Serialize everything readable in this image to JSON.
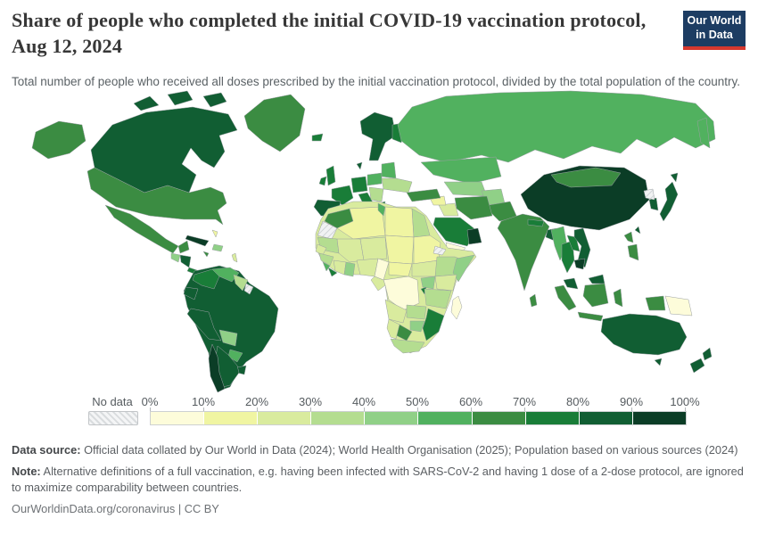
{
  "header": {
    "title": "Share of people who completed the initial COVID-19 vaccination protocol, Aug 12, 2024",
    "subtitle": "Total number of people who received all doses prescribed by the initial vaccination protocol, divided by the total population of the country.",
    "logo": {
      "line1": "Our World",
      "line2": "in Data",
      "bg_color": "#1d3d63",
      "accent_color": "#d7382e"
    }
  },
  "legend": {
    "no_data_label": "No data",
    "tick_labels": [
      "0%",
      "10%",
      "20%",
      "30%",
      "40%",
      "50%",
      "60%",
      "70%",
      "80%",
      "90%",
      "100%"
    ],
    "bucket_colors": [
      "#fdfcda",
      "#f0f5a2",
      "#d9eb9e",
      "#b4dd90",
      "#90d087",
      "#51b15f",
      "#3b8c42",
      "#197d38",
      "#115e33",
      "#0b3d26"
    ]
  },
  "footer": {
    "data_source_label": "Data source:",
    "data_source_text": " Official data collated by Our World in Data (2024); World Health Organisation (2025); Population based on various sources (2024)",
    "note_label": "Note:",
    "note_text": " Alternative definitions of a full vaccination, e.g. having been infected with SARS-CoV-2 and having 1 dose of a 2-dose protocol, are ignored to maximize comparability between countries.",
    "citation": "OurWorldinData.org/coronavirus | CC BY"
  },
  "chart_data": {
    "type": "choropleth",
    "title": "Share of people who completed the initial COVID-19 vaccination protocol",
    "date": "Aug 12, 2024",
    "unit": "% of total population",
    "legend_buckets": [
      {
        "range": "0-10%",
        "color": "#fdfcda"
      },
      {
        "range": "10-20%",
        "color": "#f0f5a2"
      },
      {
        "range": "20-30%",
        "color": "#d9eb9e"
      },
      {
        "range": "30-40%",
        "color": "#b4dd90"
      },
      {
        "range": "40-50%",
        "color": "#90d087"
      },
      {
        "range": "50-60%",
        "color": "#51b15f"
      },
      {
        "range": "60-70%",
        "color": "#3b8c42"
      },
      {
        "range": "70-80%",
        "color": "#197d38"
      },
      {
        "range": "80-90%",
        "color": "#115e33"
      },
      {
        "range": "90-100%",
        "color": "#0b3d26"
      },
      {
        "range": "No data",
        "color": "hatched-gray"
      }
    ],
    "regions": [
      {
        "id": "alaska",
        "name": "United States (Alaska)",
        "value": "60-70%"
      },
      {
        "id": "canada",
        "name": "Canada",
        "value": "80-90%"
      },
      {
        "id": "greenland",
        "name": "Greenland",
        "value": "60-70%"
      },
      {
        "id": "usa",
        "name": "United States",
        "value": "60-70%"
      },
      {
        "id": "mexico",
        "name": "Mexico",
        "value": "60-70%"
      },
      {
        "id": "guatemala",
        "name": "Guatemala",
        "value": "40-50%"
      },
      {
        "id": "honduras-nicaragua",
        "name": "Honduras / Nicaragua",
        "value": "80-90%"
      },
      {
        "id": "costa-rica-panama",
        "name": "Costa Rica / Panama",
        "value": "70-80%"
      },
      {
        "id": "cuba",
        "name": "Cuba",
        "value": "90-100%"
      },
      {
        "id": "hispaniola",
        "name": "Hispaniola",
        "value": "40-50%"
      },
      {
        "id": "jamaica",
        "name": "Jamaica",
        "value": "60-70%"
      },
      {
        "id": "bahamas",
        "name": "Bahamas",
        "value": "10-20%"
      },
      {
        "id": "lesser-antilles",
        "name": "Lesser Antilles",
        "value": "20-30%"
      },
      {
        "id": "colombia",
        "name": "Colombia",
        "value": "70-80%"
      },
      {
        "id": "venezuela",
        "name": "Venezuela",
        "value": "50-60%"
      },
      {
        "id": "guyanas",
        "name": "Guyana / Suriname",
        "value": "30-40%"
      },
      {
        "id": "french-guiana",
        "name": "French Guiana",
        "value": "No data"
      },
      {
        "id": "ecuador",
        "name": "Ecuador",
        "value": "80-90%"
      },
      {
        "id": "peru",
        "name": "Peru",
        "value": "80-90%"
      },
      {
        "id": "brazil",
        "name": "Brazil",
        "value": "80-90%"
      },
      {
        "id": "bolivia",
        "name": "Bolivia",
        "value": "40-50%"
      },
      {
        "id": "paraguay",
        "name": "Paraguay",
        "value": "50-60%"
      },
      {
        "id": "uruguay",
        "name": "Uruguay",
        "value": "80-90%"
      },
      {
        "id": "argentina",
        "name": "Argentina",
        "value": "80-90%"
      },
      {
        "id": "chile",
        "name": "Chile",
        "value": "90-100%"
      },
      {
        "id": "iceland",
        "name": "Iceland",
        "value": "70-80%"
      },
      {
        "id": "uk",
        "name": "United Kingdom",
        "value": "70-80%"
      },
      {
        "id": "ireland",
        "name": "Ireland",
        "value": "70-80%"
      },
      {
        "id": "scandinavia",
        "name": "Norway / Sweden",
        "value": "80-90%"
      },
      {
        "id": "finland",
        "name": "Finland",
        "value": "70-80%"
      },
      {
        "id": "denmark",
        "name": "Denmark",
        "value": "80-90%"
      },
      {
        "id": "germany-central",
        "name": "Germany / Central Europe",
        "value": "70-80%"
      },
      {
        "id": "france",
        "name": "France",
        "value": "70-80%"
      },
      {
        "id": "iberia",
        "name": "Spain / Portugal",
        "value": "80-90%"
      },
      {
        "id": "italy",
        "name": "Italy",
        "value": "70-80%"
      },
      {
        "id": "poland",
        "name": "Poland",
        "value": "50-60%"
      },
      {
        "id": "baltics-belarus",
        "name": "Baltics / Belarus",
        "value": "50-60%"
      },
      {
        "id": "ukraine",
        "name": "Ukraine",
        "value": "30-40%"
      },
      {
        "id": "romania-balkans",
        "name": "Romania / Balkans",
        "value": "30-40%"
      },
      {
        "id": "greece",
        "name": "Greece",
        "value": "70-80%"
      },
      {
        "id": "russia",
        "name": "Russia",
        "value": "50-60%"
      },
      {
        "id": "kazakhstan",
        "name": "Kazakhstan",
        "value": "50-60%"
      },
      {
        "id": "uzbekistan-turkmenistan",
        "name": "Uzbekistan / Turkmenistan",
        "value": "40-50%"
      },
      {
        "id": "afghanistan",
        "name": "Afghanistan",
        "value": "40-50%"
      },
      {
        "id": "pakistan",
        "name": "Pakistan",
        "value": "60-70%"
      },
      {
        "id": "iran",
        "name": "Iran",
        "value": "60-70%"
      },
      {
        "id": "iraq",
        "name": "Iraq",
        "value": "20-30%"
      },
      {
        "id": "syria",
        "name": "Syria / Jordan",
        "value": "10-20%"
      },
      {
        "id": "turkey",
        "name": "Turkey",
        "value": "60-70%"
      },
      {
        "id": "saudi-arabia",
        "name": "Saudi Arabia",
        "value": "70-80%"
      },
      {
        "id": "yemen",
        "name": "Yemen",
        "value": "0-10%"
      },
      {
        "id": "oman-uae",
        "name": "Oman / UAE",
        "value": "90-100%"
      },
      {
        "id": "india",
        "name": "India",
        "value": "60-70%"
      },
      {
        "id": "nepal",
        "name": "Nepal",
        "value": "70-80%"
      },
      {
        "id": "bangladesh",
        "name": "Bangladesh",
        "value": "80-90%"
      },
      {
        "id": "sri-lanka",
        "name": "Sri Lanka",
        "value": "60-70%"
      },
      {
        "id": "china",
        "name": "China",
        "value": "90-100%"
      },
      {
        "id": "mongolia",
        "name": "Mongolia",
        "value": "60-70%"
      },
      {
        "id": "japan",
        "name": "Japan",
        "value": "80-90%"
      },
      {
        "id": "south-korea",
        "name": "South Korea",
        "value": "80-90%"
      },
      {
        "id": "north-korea",
        "name": "North Korea",
        "value": "No data"
      },
      {
        "id": "taiwan",
        "name": "Taiwan",
        "value": "80-90%"
      },
      {
        "id": "myanmar",
        "name": "Myanmar",
        "value": "50-60%"
      },
      {
        "id": "thailand",
        "name": "Thailand",
        "value": "70-80%"
      },
      {
        "id": "laos",
        "name": "Laos",
        "value": "70-80%"
      },
      {
        "id": "vietnam",
        "name": "Vietnam",
        "value": "80-90%"
      },
      {
        "id": "cambodia",
        "name": "Cambodia",
        "value": "90-100%"
      },
      {
        "id": "malaysia",
        "name": "Malaysia",
        "value": "80-90%"
      },
      {
        "id": "philippines",
        "name": "Philippines",
        "value": "60-70%"
      },
      {
        "id": "indonesia",
        "name": "Indonesia",
        "value": "60-70%"
      },
      {
        "id": "papua-new-guinea",
        "name": "Papua New Guinea",
        "value": "0-10%"
      },
      {
        "id": "australia",
        "name": "Australia",
        "value": "80-90%"
      },
      {
        "id": "new-zealand",
        "name": "New Zealand",
        "value": "80-90%"
      },
      {
        "id": "morocco",
        "name": "Morocco",
        "value": "60-70%"
      },
      {
        "id": "western-sahara",
        "name": "Western Sahara",
        "value": "No data"
      },
      {
        "id": "algeria",
        "name": "Algeria",
        "value": "10-20%"
      },
      {
        "id": "tunisia",
        "name": "Tunisia",
        "value": "50-60%"
      },
      {
        "id": "libya",
        "name": "Libya",
        "value": "10-20%"
      },
      {
        "id": "egypt",
        "name": "Egypt",
        "value": "30-40%"
      },
      {
        "id": "mauritania",
        "name": "Mauritania",
        "value": "30-40%"
      },
      {
        "id": "mali",
        "name": "Mali",
        "value": "20-30%"
      },
      {
        "id": "niger",
        "name": "Niger",
        "value": "20-30%"
      },
      {
        "id": "chad",
        "name": "Chad",
        "value": "10-20%"
      },
      {
        "id": "sudan",
        "name": "Sudan",
        "value": "10-20%"
      },
      {
        "id": "senegal",
        "name": "Senegal / Gambia",
        "value": "20-30%"
      },
      {
        "id": "guinea",
        "name": "Guinea",
        "value": "30-40%"
      },
      {
        "id": "sierra-leone",
        "name": "Sierra Leone",
        "value": "50-60%"
      },
      {
        "id": "liberia",
        "name": "Liberia",
        "value": "70-80%"
      },
      {
        "id": "ivory-coast",
        "name": "Côte d'Ivoire",
        "value": "20-30%"
      },
      {
        "id": "ghana",
        "name": "Ghana",
        "value": "40-50%"
      },
      {
        "id": "nigeria",
        "name": "Nigeria",
        "value": "20-30%"
      },
      {
        "id": "cameroon",
        "name": "Cameroon",
        "value": "0-10%"
      },
      {
        "id": "central-african-republic",
        "name": "Central African Republic",
        "value": "10-20%"
      },
      {
        "id": "south-sudan",
        "name": "South Sudan",
        "value": "20-30%"
      },
      {
        "id": "ethiopia",
        "name": "Ethiopia",
        "value": "30-40%"
      },
      {
        "id": "eritrea",
        "name": "Eritrea",
        "value": "No data"
      },
      {
        "id": "somalia",
        "name": "Somalia",
        "value": "40-50%"
      },
      {
        "id": "kenya",
        "name": "Kenya",
        "value": "20-30%"
      },
      {
        "id": "uganda",
        "name": "Uganda",
        "value": "40-50%"
      },
      {
        "id": "rwanda-burundi",
        "name": "Rwanda / Burundi",
        "value": "70-80%"
      },
      {
        "id": "drc",
        "name": "Democratic Republic of Congo",
        "value": "0-10%"
      },
      {
        "id": "congo-gabon",
        "name": "Congo / Gabon",
        "value": "20-30%"
      },
      {
        "id": "tanzania",
        "name": "Tanzania",
        "value": "30-40%"
      },
      {
        "id": "angola",
        "name": "Angola",
        "value": "20-30%"
      },
      {
        "id": "zambia",
        "name": "Zambia",
        "value": "30-40%"
      },
      {
        "id": "mozambique",
        "name": "Mozambique",
        "value": "70-80%"
      },
      {
        "id": "zimbabwe",
        "name": "Zimbabwe",
        "value": "40-50%"
      },
      {
        "id": "botswana",
        "name": "Botswana",
        "value": "60-70%"
      },
      {
        "id": "namibia",
        "name": "Namibia",
        "value": "20-30%"
      },
      {
        "id": "south-africa",
        "name": "South Africa",
        "value": "30-40%"
      },
      {
        "id": "madagascar",
        "name": "Madagascar",
        "value": "0-10%"
      }
    ]
  }
}
